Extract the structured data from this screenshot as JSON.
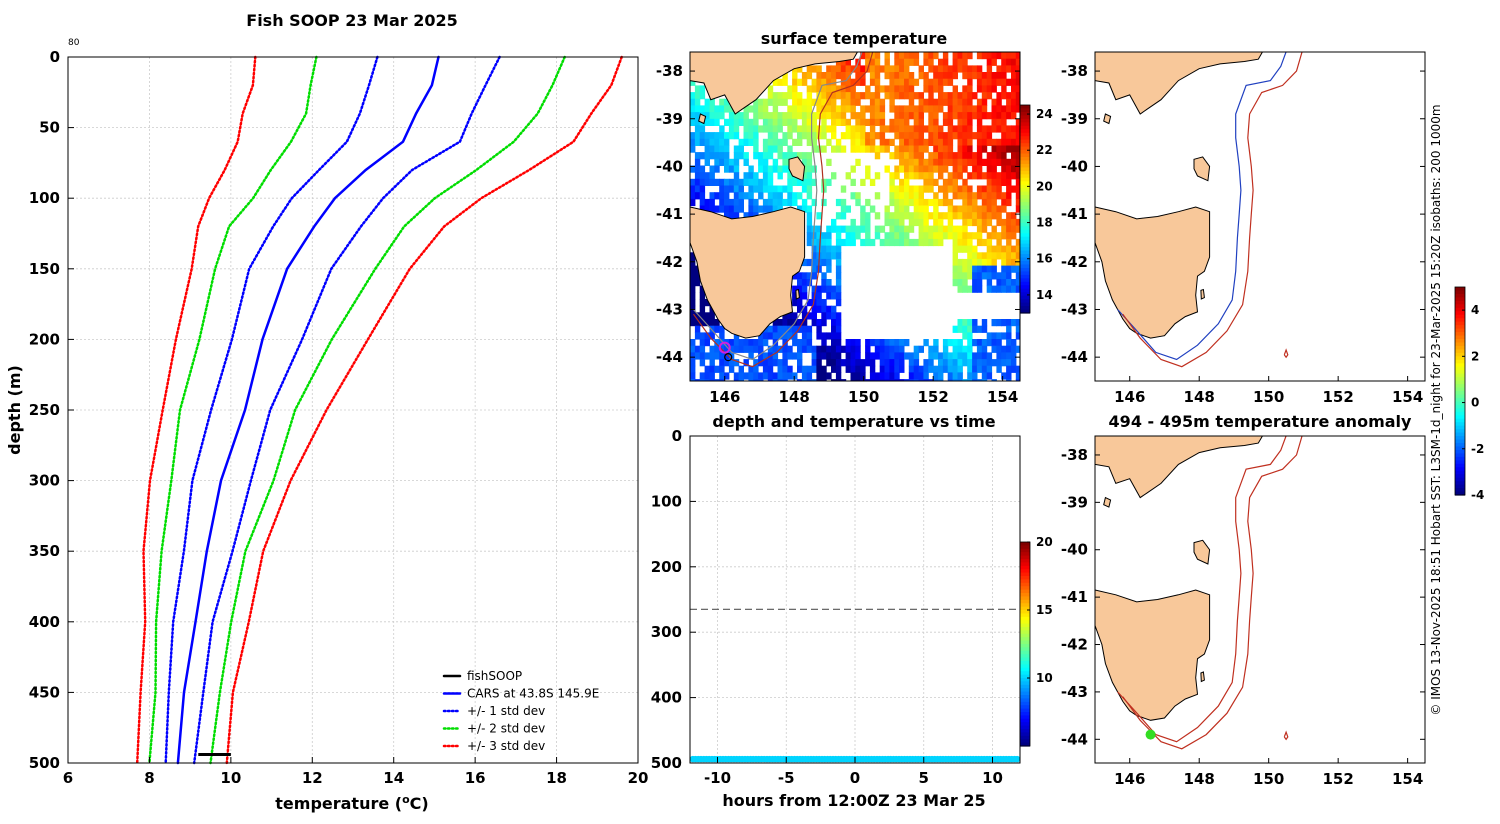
{
  "figure": {
    "side_note": "© IMOS 13-Nov-2025 18:51 Hobart SST: L3SM-1d_night for 23-Mar-2025 15:20Z isobaths: 200  1000m"
  },
  "chart_data": [
    {
      "id": "profile",
      "type": "line",
      "title": "Fish SOOP 23 Mar 2025",
      "corner_label": "80",
      "xlabel": "temperature (",
      "xlabel_sup": "o",
      "xlabel_end": "C)",
      "ylabel": "depth (m)",
      "xlim": [
        6,
        20
      ],
      "ylim": [
        500,
        0
      ],
      "xticks": [
        "6",
        "8",
        "10",
        "12",
        "14",
        "16",
        "18",
        "20"
      ],
      "yticks": [
        "0",
        "50",
        "100",
        "150",
        "200",
        "250",
        "300",
        "350",
        "400",
        "450",
        "500"
      ],
      "grid": true,
      "legend_position": "bottom-right",
      "depth": [
        0,
        20,
        40,
        60,
        80,
        100,
        120,
        150,
        200,
        250,
        300,
        350,
        400,
        450,
        500
      ],
      "series": [
        {
          "name": "CARS at 43.8S 145.9E",
          "style": "solid",
          "color": "#0000ff",
          "values": [
            15.1,
            14.9,
            14.6,
            14.2,
            13.3,
            12.6,
            12.0,
            11.4,
            10.8,
            10.3,
            9.8,
            9.4,
            9.1,
            8.9,
            8.7
          ]
        },
        {
          "name": "+/- 1 std dev",
          "style": "dotted",
          "color": "#0000ff",
          "values": [
            13.6,
            13.4,
            13.2,
            12.8,
            12.2,
            11.5,
            11.0,
            10.5,
            10.0,
            9.5,
            9.1,
            8.8,
            8.6,
            8.5,
            8.4
          ]
        },
        {
          "name": "+/- 1 std dev upper",
          "style": "dotted",
          "color": "#0000ff",
          "values": [
            16.6,
            16.3,
            15.9,
            15.6,
            14.5,
            13.7,
            13.2,
            12.5,
            11.7,
            11.0,
            10.5,
            10.0,
            9.6,
            9.3,
            9.1
          ]
        },
        {
          "name": "+/- 2 std dev",
          "style": "dotted",
          "color": "#00dd00",
          "values": [
            12.1,
            12.0,
            11.8,
            11.5,
            11.0,
            10.5,
            10.0,
            9.6,
            9.2,
            8.8,
            8.5,
            8.3,
            8.2,
            8.1,
            8.0
          ]
        },
        {
          "name": "+/- 2 std dev upper",
          "style": "dotted",
          "color": "#00dd00",
          "values": [
            18.2,
            17.9,
            17.5,
            17.0,
            16.0,
            15.0,
            14.3,
            13.5,
            12.5,
            11.6,
            11.0,
            10.4,
            10.0,
            9.7,
            9.5
          ]
        },
        {
          "name": "+/- 3 std dev",
          "style": "dotted",
          "color": "#ff0000",
          "values": [
            10.6,
            10.5,
            10.3,
            10.2,
            9.8,
            9.5,
            9.2,
            9.0,
            8.7,
            8.3,
            8.0,
            7.9,
            7.85,
            7.8,
            7.7
          ]
        },
        {
          "name": "+/- 3 std dev upper",
          "style": "dotted",
          "color": "#ff0000",
          "values": [
            19.6,
            19.3,
            18.9,
            18.4,
            17.3,
            16.2,
            15.2,
            14.4,
            13.4,
            12.3,
            11.5,
            10.8,
            10.4,
            10.1,
            9.9
          ]
        }
      ],
      "fishsoop": {
        "name": "fishSOOP",
        "depth": 494,
        "x_range": [
          9.2,
          10.0
        ],
        "color": "#000000"
      },
      "legend": [
        {
          "label": "fishSOOP",
          "style": "solid",
          "color": "#000000"
        },
        {
          "label": "CARS at 43.8S 145.9E",
          "style": "solid",
          "color": "#0000ff"
        },
        {
          "label": "+/- 1 std dev",
          "style": "dotted",
          "color": "#0000ff"
        },
        {
          "label": "+/- 2 std dev",
          "style": "dotted",
          "color": "#00dd00"
        },
        {
          "label": "+/- 3 std dev",
          "style": "dotted",
          "color": "#ff0000"
        }
      ]
    },
    {
      "id": "sst_map",
      "type": "heatmap",
      "title": "surface temperature",
      "xlim": [
        145,
        154.5
      ],
      "ylim": [
        -44.5,
        -37.6
      ],
      "xticks": [
        "146",
        "148",
        "150",
        "152",
        "154"
      ],
      "yticks": [
        "-38",
        "-39",
        "-40",
        "-41",
        "-42",
        "-43",
        "-44"
      ],
      "colorbar": {
        "ticks": [
          "14",
          "16",
          "18",
          "20",
          "22",
          "24"
        ],
        "range": [
          13,
          24.5
        ]
      },
      "marker_magenta": {
        "lon": 146.0,
        "lat": -43.8
      },
      "marker_black": {
        "lon": 146.1,
        "lat": -44.0
      }
    },
    {
      "id": "time_series",
      "type": "scatter",
      "title": "depth and temperature vs time",
      "xlabel": "hours from 12:00Z 23 Mar 25",
      "xlim": [
        -12,
        12
      ],
      "ylim": [
        500,
        0
      ],
      "xticks": [
        "-10",
        "-5",
        "0",
        "5",
        "10"
      ],
      "yticks": [
        "0",
        "100",
        "200",
        "300",
        "400",
        "500"
      ],
      "dashed_line_depth": 265,
      "points_depth": 494,
      "points_temperature": 10,
      "colorbar": {
        "ticks": [
          "10",
          "15",
          "20"
        ],
        "range": [
          5,
          20
        ]
      }
    },
    {
      "id": "isobath_map",
      "type": "scatter",
      "title": "",
      "xlim": [
        145,
        154.5
      ],
      "ylim": [
        -44.5,
        -37.6
      ],
      "xticks": [
        "146",
        "148",
        "150",
        "152",
        "154"
      ],
      "yticks": [
        "-38",
        "-39",
        "-40",
        "-41",
        "-42",
        "-43",
        "-44"
      ],
      "colorbar": {
        "ticks": [
          "-4",
          "-2",
          "0",
          "2",
          "4"
        ],
        "range": [
          -4,
          5
        ]
      }
    },
    {
      "id": "anomaly_map",
      "type": "scatter",
      "title": "494 - 495m temperature anomaly",
      "xlim": [
        145,
        154.5
      ],
      "ylim": [
        -44.5,
        -37.6
      ],
      "xticks": [
        "146",
        "148",
        "150",
        "152",
        "154"
      ],
      "yticks": [
        "-38",
        "-39",
        "-40",
        "-41",
        "-42",
        "-43",
        "-44"
      ],
      "marker": {
        "lon": 146.6,
        "lat": -43.9,
        "color": "#33dd22"
      }
    }
  ]
}
